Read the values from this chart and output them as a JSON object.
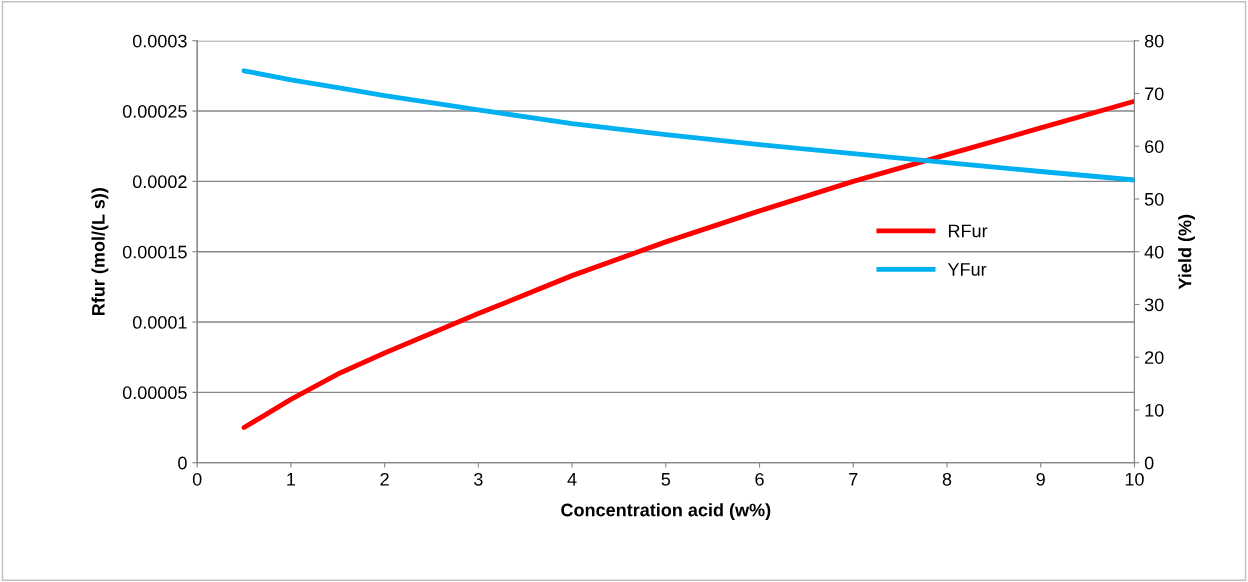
{
  "chart_data": {
    "type": "line",
    "xlabel": "Concentration acid (w%)",
    "ylabel": "Rfur (mol/(L s))",
    "y2label": "Yield (%)",
    "x": [
      0.5,
      1,
      1.5,
      2,
      3,
      4,
      5,
      6,
      7,
      8,
      9,
      10
    ],
    "series": [
      {
        "name": "RFur",
        "color": "#ff0000",
        "values": [
          2.5e-05,
          4.5e-05,
          6.3e-05,
          7.8e-05,
          0.000106,
          0.000133,
          0.000157,
          0.000179,
          0.0002,
          0.000219,
          0.000238,
          0.000257
        ]
      },
      {
        "name": "YFur",
        "color": "#00b0f0",
        "axis": "y2",
        "values": [
          74.3,
          72.6,
          71.1,
          69.6,
          66.9,
          64.3,
          62.2,
          60.3,
          58.6,
          56.9,
          55.2,
          53.6
        ]
      }
    ],
    "xlim": [
      0,
      10
    ],
    "xticks": [
      0,
      1,
      2,
      3,
      4,
      5,
      6,
      7,
      8,
      9,
      10
    ],
    "ylim": [
      0,
      0.0003
    ],
    "yticks": [
      0,
      {
        "value": 5e-05,
        "label": "0.00005"
      },
      0.0001,
      0.00015,
      0.0002,
      0.00025,
      0.0003
    ],
    "y2lim": [
      0,
      80
    ],
    "y2ticks": [
      0,
      10,
      20,
      30,
      40,
      50,
      60,
      70,
      80
    ],
    "grid": "y",
    "legend": "right",
    "marker": "none",
    "line_style": "solid"
  }
}
